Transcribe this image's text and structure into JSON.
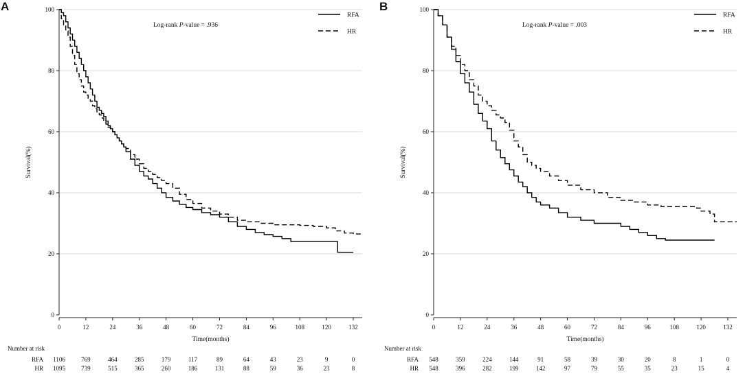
{
  "chart_data": [
    {
      "type": "line",
      "panel": "A",
      "annotation": {
        "prefix": "Log-rank ",
        "italic": "P",
        "suffix": "-value = .936"
      },
      "xlabel": "Time(months)",
      "ylabel": "Survival(%)",
      "xlim": [
        0,
        136
      ],
      "ylim": [
        0,
        100
      ],
      "xticks": [
        0,
        12,
        24,
        36,
        48,
        60,
        72,
        84,
        96,
        108,
        120,
        132
      ],
      "yticks": [
        0,
        20,
        40,
        60,
        80,
        100
      ],
      "legend": [
        {
          "name": "RFA",
          "dash": "solid"
        },
        {
          "name": "HR",
          "dash": "dashed"
        }
      ],
      "series": [
        {
          "name": "RFA",
          "dash": "solid",
          "x": [
            0,
            1,
            2,
            3,
            4,
            5,
            6,
            7,
            8,
            9,
            10,
            11,
            12,
            13,
            14,
            15,
            16,
            17,
            18,
            19,
            20,
            21,
            22,
            23,
            24,
            25,
            26,
            27,
            28,
            29,
            30,
            32,
            34,
            36,
            38,
            40,
            42,
            44,
            46,
            48,
            51,
            54,
            57,
            60,
            64,
            68,
            72,
            76,
            80,
            84,
            88,
            92,
            96,
            100,
            104,
            125,
            132
          ],
          "y": [
            100,
            99,
            98,
            96,
            94,
            92,
            90,
            88,
            86,
            84,
            82,
            80,
            78,
            76,
            74,
            72,
            70,
            68,
            67,
            66,
            65,
            63.5,
            62,
            61,
            60,
            59,
            58,
            57,
            56,
            55,
            53.5,
            51,
            49,
            47,
            45.5,
            44.5,
            43,
            41.5,
            40,
            38.5,
            37.3,
            36.2,
            35.2,
            34.5,
            33.5,
            32.8,
            32,
            30.5,
            29,
            28,
            27,
            26.3,
            25.7,
            25,
            24,
            20.5,
            20.5
          ]
        },
        {
          "name": "HR",
          "dash": "dashed",
          "x": [
            0,
            1,
            2,
            3,
            4,
            5,
            6,
            7,
            8,
            9,
            10,
            11,
            12,
            13,
            14,
            15,
            16,
            17,
            18,
            19,
            20,
            21,
            22,
            23,
            24,
            25,
            26,
            27,
            28,
            29,
            30,
            32,
            34,
            36,
            38,
            40,
            42,
            44,
            46,
            48,
            51,
            54,
            57,
            60,
            64,
            68,
            72,
            76,
            80,
            84,
            90,
            96,
            102,
            108,
            114,
            120,
            124,
            128,
            132,
            136
          ],
          "y": [
            100,
            97,
            95,
            93,
            91,
            88,
            85,
            82,
            79,
            77,
            75,
            73,
            72,
            71,
            70,
            68.5,
            67.5,
            66.5,
            65.5,
            64.5,
            63.5,
            62.5,
            61.5,
            60.5,
            60,
            59,
            58,
            57,
            56,
            55,
            54.5,
            52.5,
            51,
            49.5,
            48,
            47,
            46,
            45,
            44,
            43,
            41.5,
            39.5,
            37.8,
            36.5,
            35,
            34,
            33,
            32,
            31,
            30.5,
            30,
            29.5,
            29.5,
            29.3,
            29,
            28.5,
            27.5,
            26.8,
            26.5,
            26.5
          ]
        }
      ],
      "risk_table": {
        "title": "Number at risk",
        "times": [
          0,
          12,
          24,
          36,
          48,
          60,
          72,
          84,
          96,
          108,
          120,
          132
        ],
        "rows": [
          {
            "label": "RFA",
            "values": [
              1106,
              769,
              464,
              285,
              179,
              117,
              89,
              64,
              43,
              23,
              9,
              0
            ]
          },
          {
            "label": "HR",
            "values": [
              1095,
              739,
              515,
              365,
              260,
              186,
              131,
              88,
              59,
              36,
              23,
              8
            ]
          }
        ]
      }
    },
    {
      "type": "line",
      "panel": "B",
      "annotation": {
        "prefix": "Log-rank ",
        "italic": "P",
        "suffix": "-value = .003"
      },
      "xlabel": "Time(months)",
      "ylabel": "Survival(%)",
      "xlim": [
        0,
        136
      ],
      "ylim": [
        0,
        100
      ],
      "xticks": [
        0,
        12,
        24,
        36,
        48,
        60,
        72,
        84,
        96,
        108,
        120,
        132
      ],
      "yticks": [
        0,
        20,
        40,
        60,
        80,
        100
      ],
      "legend": [
        {
          "name": "RFA",
          "dash": "solid"
        },
        {
          "name": "HR",
          "dash": "dashed"
        }
      ],
      "series": [
        {
          "name": "RFA",
          "dash": "solid",
          "x": [
            0,
            2,
            4,
            6,
            8,
            10,
            12,
            14,
            16,
            18,
            20,
            22,
            24,
            26,
            28,
            30,
            32,
            34,
            36,
            38,
            40,
            42,
            44,
            46,
            48,
            52,
            56,
            60,
            66,
            72,
            78,
            84,
            88,
            92,
            96,
            100,
            104,
            108,
            112,
            118,
            126
          ],
          "y": [
            100,
            98,
            95,
            91,
            87,
            83,
            79,
            76,
            73,
            69,
            66,
            63.5,
            61,
            57,
            54,
            51.5,
            49.5,
            47.5,
            45.5,
            43.5,
            42,
            40,
            38.5,
            37,
            36,
            35,
            33.5,
            32,
            31,
            30,
            30,
            29,
            28,
            27,
            26,
            25,
            24.5,
            24.5,
            24.5,
            24.5,
            24.5
          ]
        },
        {
          "name": "HR",
          "dash": "dashed",
          "x": [
            0,
            2,
            4,
            6,
            8,
            10,
            12,
            14,
            16,
            18,
            20,
            22,
            24,
            26,
            28,
            30,
            32,
            34,
            36,
            38,
            40,
            42,
            44,
            46,
            48,
            52,
            56,
            60,
            66,
            72,
            78,
            84,
            90,
            96,
            102,
            108,
            114,
            118,
            120,
            124,
            126,
            132,
            136
          ],
          "y": [
            100,
            98,
            95,
            91,
            88,
            85,
            82,
            80,
            77,
            75,
            72,
            70,
            68.5,
            67,
            65.5,
            64.5,
            63,
            60.5,
            57,
            55,
            52.5,
            50,
            49,
            48,
            47,
            45.5,
            44,
            42.5,
            41,
            40,
            38.5,
            37.5,
            37,
            36,
            35.5,
            35.5,
            35.5,
            35,
            34,
            33,
            30.5,
            30.5,
            30.5
          ]
        }
      ],
      "risk_table": {
        "title": "Number at risk",
        "times": [
          0,
          12,
          24,
          36,
          48,
          60,
          72,
          84,
          96,
          108,
          120,
          132
        ],
        "rows": [
          {
            "label": "RFA",
            "values": [
              548,
              359,
              224,
              144,
              91,
              58,
              39,
              30,
              20,
              8,
              1,
              0
            ]
          },
          {
            "label": "HR",
            "values": [
              548,
              396,
              282,
              199,
              142,
              97,
              79,
              55,
              35,
              23,
              15,
              4
            ]
          }
        ]
      }
    }
  ]
}
